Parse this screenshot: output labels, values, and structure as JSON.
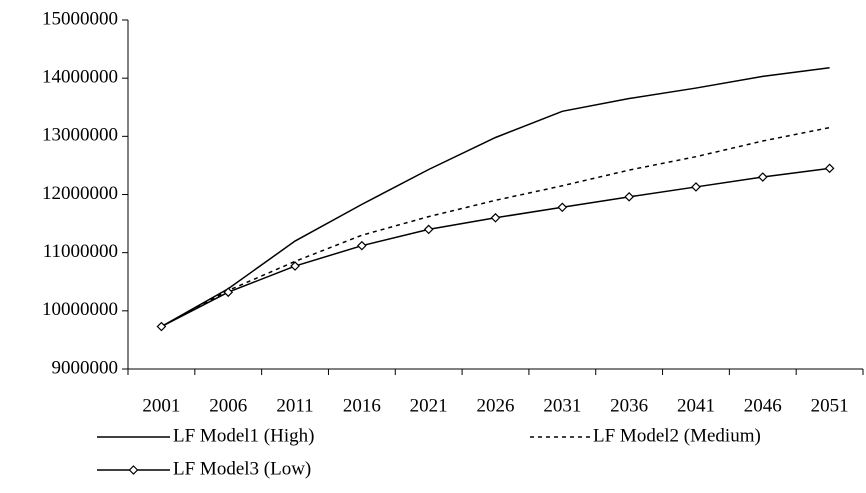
{
  "chart_data": {
    "type": "line",
    "categories": [
      "2001",
      "2006",
      "2011",
      "2016",
      "2021",
      "2026",
      "2031",
      "2036",
      "2041",
      "2046",
      "2051"
    ],
    "series": [
      {
        "name": "LF Model1 (High)",
        "color": "#000000",
        "dash": "solid",
        "marker": "none",
        "values": [
          9730000,
          10380000,
          11200000,
          11830000,
          12430000,
          12980000,
          13430000,
          13650000,
          13830000,
          14030000,
          14180000
        ]
      },
      {
        "name": "LF Model2 (Medium)",
        "color": "#000000",
        "dash": "dotted",
        "marker": "none",
        "values": [
          9730000,
          10350000,
          10850000,
          11300000,
          11620000,
          11900000,
          12150000,
          12420000,
          12650000,
          12920000,
          13150000
        ]
      },
      {
        "name": "LF Model3 (Low)",
        "color": "#000000",
        "dash": "solid",
        "marker": "diamond",
        "values": [
          9730000,
          10320000,
          10770000,
          11120000,
          11400000,
          11600000,
          11780000,
          11960000,
          12130000,
          12300000,
          12450000
        ]
      }
    ],
    "ylim": [
      9000000,
      15000000
    ],
    "yticks": [
      9000000,
      10000000,
      11000000,
      12000000,
      13000000,
      14000000,
      15000000
    ],
    "grid": false,
    "legend": "bottom"
  }
}
